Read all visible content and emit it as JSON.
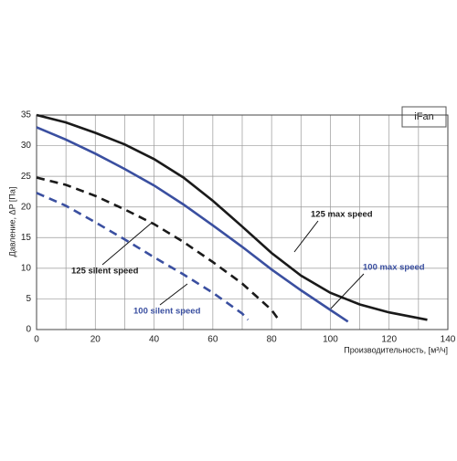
{
  "chart_data": {
    "type": "line",
    "title": "iFan",
    "y_label": "Давление, ΔP [Па]",
    "x_label": "Производительность, [м³/ч]",
    "xlim": [
      0,
      140
    ],
    "ylim": [
      0,
      35
    ],
    "xticks": [
      0,
      20,
      40,
      60,
      80,
      100,
      120,
      140
    ],
    "yticks": [
      0,
      5,
      10,
      15,
      20,
      25,
      30,
      35
    ],
    "grid": true,
    "series": [
      {
        "name": "125 max speed",
        "color": "#1a1a1a",
        "dashed": false,
        "x": [
          0,
          10,
          20,
          30,
          40,
          50,
          60,
          70,
          80,
          90,
          100,
          110,
          120,
          133
        ],
        "values": [
          35,
          33.8,
          32.1,
          30.2,
          27.8,
          24.8,
          21,
          16.8,
          12.5,
          8.8,
          6,
          4.1,
          2.8,
          1.6
        ]
      },
      {
        "name": "100 max speed",
        "color": "#3a4fa0",
        "dashed": false,
        "x": [
          0,
          10,
          20,
          30,
          40,
          50,
          60,
          70,
          80,
          90,
          100,
          106
        ],
        "values": [
          33,
          31,
          28.7,
          26.2,
          23.5,
          20.4,
          17,
          13.5,
          9.8,
          6.4,
          3.2,
          1.3
        ]
      },
      {
        "name": "125 silent speed",
        "color": "#1a1a1a",
        "dashed": true,
        "x": [
          0,
          10,
          20,
          30,
          40,
          50,
          60,
          70,
          80,
          83
        ],
        "values": [
          24.8,
          23.6,
          21.8,
          19.6,
          17.2,
          14.3,
          11,
          7.5,
          3.2,
          1.2
        ]
      },
      {
        "name": "100 silent speed",
        "color": "#3a4fa0",
        "dashed": true,
        "x": [
          0,
          10,
          20,
          30,
          40,
          50,
          60,
          70,
          72
        ],
        "values": [
          22.3,
          20.2,
          17.5,
          14.7,
          11.8,
          9,
          6,
          2.6,
          1.6
        ]
      }
    ]
  }
}
